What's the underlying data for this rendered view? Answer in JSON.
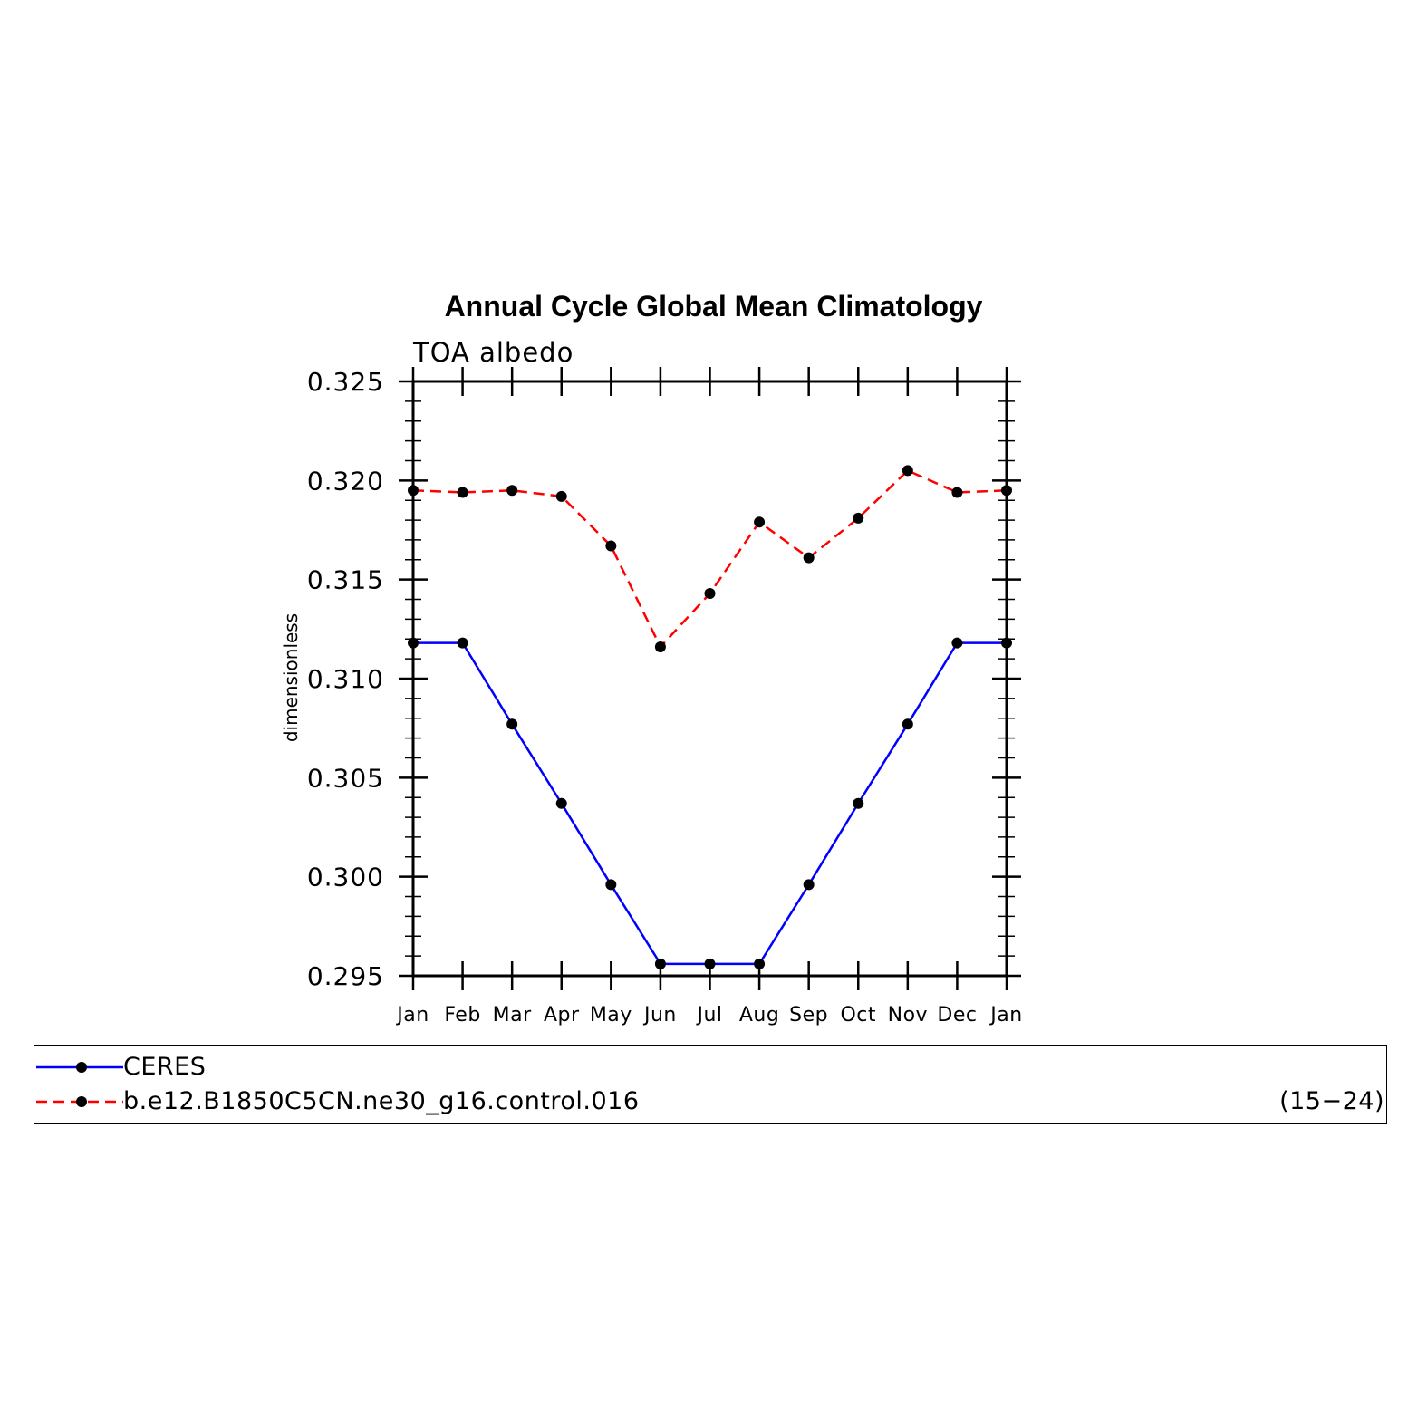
{
  "chart_data": {
    "type": "line",
    "title": "Annual Cycle Global Mean Climatology",
    "subtitle": "TOA  albedo",
    "ylabel": "dimensionless",
    "xlabel": "",
    "categories": [
      "Jan",
      "Feb",
      "Mar",
      "Apr",
      "May",
      "Jun",
      "Jul",
      "Aug",
      "Sep",
      "Oct",
      "Nov",
      "Dec",
      "Jan"
    ],
    "ylim": [
      0.295,
      0.325
    ],
    "yticks": [
      "0.295",
      "0.300",
      "0.305",
      "0.310",
      "0.315",
      "0.320",
      "0.325"
    ],
    "grid": false,
    "series": [
      {
        "name": "CERES",
        "color": "#0000ff",
        "dash": "solid",
        "values": [
          0.3118,
          0.3118,
          0.3077,
          0.3037,
          0.2996,
          0.2956,
          0.2956,
          0.2956,
          0.2996,
          0.3037,
          0.3077,
          0.3118,
          0.3118
        ]
      },
      {
        "name": "b.e12.B1850C5CN.ne30_g16.control.016",
        "color": "#ff0000",
        "dash": "dashed",
        "values": [
          0.3195,
          0.3194,
          0.3195,
          0.3192,
          0.3167,
          0.3116,
          0.3143,
          0.3179,
          0.3161,
          0.3181,
          0.3205,
          0.3194,
          0.3195
        ]
      }
    ],
    "marker_color": "#000000",
    "legend": {
      "placement": "bottom",
      "entries": [
        {
          "label": "CERES",
          "years": ""
        },
        {
          "label": "b.e12.B1850C5CN.ne30_g16.control.016",
          "years": "(15−24)"
        }
      ]
    }
  }
}
